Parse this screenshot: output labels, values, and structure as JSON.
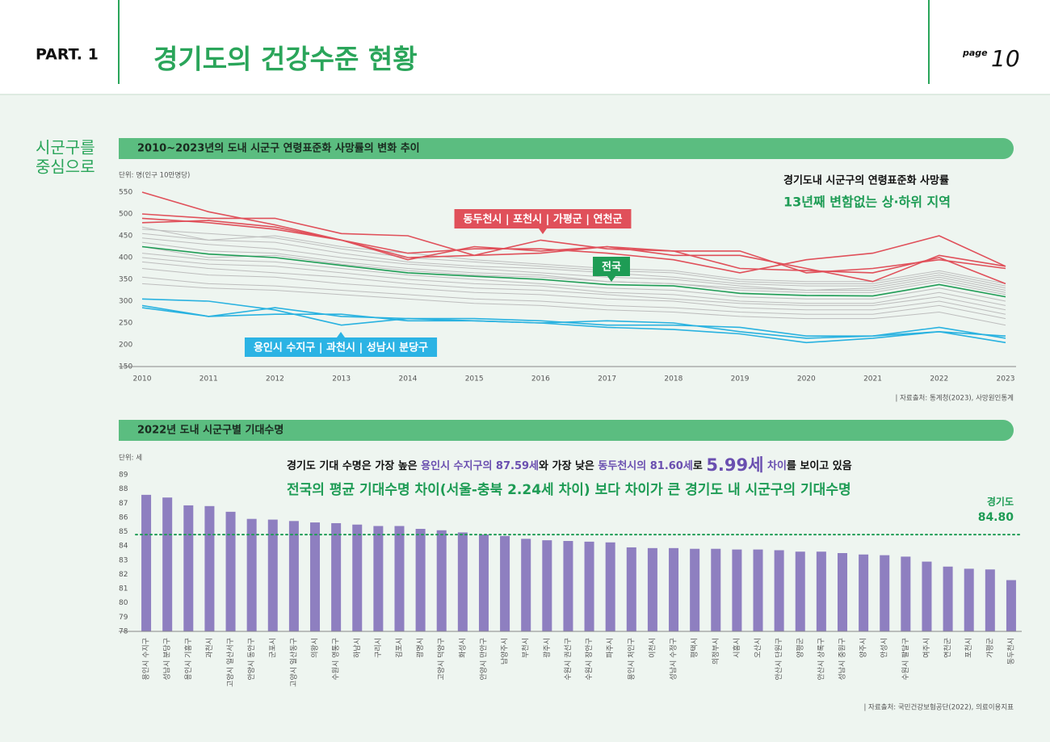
{
  "header": {
    "part": "PART. 1",
    "title": "경기도의 건강수준 현황",
    "page_label": "page",
    "page_number": "10"
  },
  "section_label": [
    "시군구를",
    "중심으로"
  ],
  "chart_data": [
    {
      "type": "line",
      "title": "2010~2023년의 도내 시군구 연령표준화 사망률의 변화 추이",
      "unit": "단위: 명(인구 10만명당)",
      "x": [
        2010,
        2011,
        2012,
        2013,
        2014,
        2015,
        2016,
        2017,
        2018,
        2019,
        2020,
        2021,
        2022,
        2023
      ],
      "xlim": [
        2010,
        2023
      ],
      "xticks": [
        2010,
        2011,
        2012,
        2013,
        2014,
        2015,
        2016,
        2017,
        2018,
        2019,
        2020,
        2021,
        2022,
        2023
      ],
      "ylim": [
        150,
        550
      ],
      "yticks": [
        150,
        200,
        250,
        300,
        350,
        400,
        450,
        500,
        550
      ],
      "series": [
        {
          "color": "#bdbdbd",
          "values": [
            465,
            455,
            445,
            420,
            400,
            390,
            380,
            370,
            365,
            345,
            340,
            340,
            365,
            335
          ]
        },
        {
          "color": "#bdbdbd",
          "values": [
            455,
            440,
            435,
            410,
            390,
            380,
            375,
            365,
            355,
            340,
            335,
            335,
            360,
            330
          ]
        },
        {
          "color": "#bdbdbd",
          "values": [
            445,
            430,
            420,
            400,
            385,
            375,
            365,
            355,
            350,
            335,
            325,
            330,
            355,
            325
          ]
        },
        {
          "color": "#bdbdbd",
          "values": [
            435,
            415,
            410,
            390,
            375,
            365,
            360,
            345,
            340,
            325,
            320,
            320,
            345,
            315
          ]
        },
        {
          "color": "#bdbdbd",
          "values": [
            410,
            395,
            390,
            375,
            360,
            350,
            340,
            330,
            325,
            310,
            305,
            305,
            330,
            300
          ]
        },
        {
          "color": "#bdbdbd",
          "values": [
            400,
            385,
            380,
            365,
            350,
            340,
            335,
            320,
            315,
            300,
            295,
            295,
            320,
            290
          ]
        },
        {
          "color": "#bdbdbd",
          "values": [
            390,
            375,
            365,
            355,
            340,
            330,
            325,
            315,
            305,
            295,
            290,
            290,
            310,
            280
          ]
        },
        {
          "color": "#bdbdbd",
          "values": [
            375,
            360,
            355,
            340,
            330,
            320,
            315,
            305,
            300,
            285,
            280,
            280,
            300,
            270
          ]
        },
        {
          "color": "#bdbdbd",
          "values": [
            355,
            340,
            335,
            325,
            315,
            305,
            300,
            290,
            285,
            275,
            270,
            270,
            290,
            260
          ]
        },
        {
          "color": "#bdbdbd",
          "values": [
            340,
            330,
            325,
            315,
            305,
            295,
            290,
            280,
            275,
            265,
            260,
            260,
            275,
            245
          ]
        },
        {
          "color": "#bdbdbd",
          "values": [
            470,
            440,
            450,
            425,
            410,
            395,
            385,
            375,
            370,
            350,
            345,
            345,
            370,
            340
          ]
        },
        {
          "color": "#bdbdbd",
          "values": [
            425,
            400,
            405,
            385,
            370,
            360,
            355,
            345,
            340,
            330,
            325,
            325,
            350,
            320
          ]
        },
        {
          "color": "#e0505a",
          "values": [
            550,
            505,
            475,
            440,
            395,
            425,
            415,
            425,
            405,
            405,
            375,
            345,
            405,
            380
          ]
        },
        {
          "color": "#e0505a",
          "values": [
            500,
            490,
            490,
            455,
            450,
            405,
            440,
            420,
            415,
            415,
            365,
            375,
            395,
            375
          ]
        },
        {
          "color": "#e0505a",
          "values": [
            490,
            480,
            465,
            440,
            410,
            420,
            420,
            410,
            395,
            365,
            395,
            410,
            450,
            380
          ]
        },
        {
          "color": "#e0505a",
          "values": [
            480,
            485,
            470,
            440,
            400,
            405,
            410,
            425,
            415,
            375,
            370,
            365,
            400,
            340
          ]
        },
        {
          "color": "#29b2e0",
          "values": [
            305,
            300,
            280,
            245,
            260,
            255,
            250,
            255,
            250,
            230,
            215,
            220,
            240,
            215
          ]
        },
        {
          "color": "#29b2e0",
          "values": [
            290,
            265,
            285,
            265,
            260,
            260,
            255,
            245,
            245,
            240,
            220,
            220,
            230,
            220
          ]
        },
        {
          "color": "#29b2e0",
          "values": [
            285,
            265,
            270,
            270,
            255,
            255,
            250,
            240,
            235,
            225,
            205,
            215,
            230,
            205
          ]
        },
        {
          "name": "전국",
          "color": "#1e9c55",
          "values": [
            425,
            408,
            400,
            382,
            365,
            357,
            350,
            338,
            335,
            318,
            313,
            312,
            338,
            310
          ]
        }
      ],
      "callouts": [
        {
          "text": "동두천시 | 포천시 | 가평군 | 연천군",
          "color": "#e0505a"
        },
        {
          "text": "용인시 수지구 | 과천시 | 성남시 분당구",
          "color": "#2bb3e4"
        }
      ],
      "annotation": [
        "경기도내 시군구의 연령표준화 사망률",
        "13년째 변함없는 상·하위 지역"
      ],
      "source": "| 자료출처: 통계청(2023), 사망원인통계"
    },
    {
      "type": "bar",
      "title": "2022년 도내 시군구별 기대수명",
      "unit": "단위: 세",
      "categories": [
        "용인시 수지구",
        "성남시 분당구",
        "용인시 기흥구",
        "과천시",
        "고양시 일산서구",
        "안양시 동안구",
        "군포시",
        "고양시 일산동구",
        "의왕시",
        "수원시 영통구",
        "하남시",
        "구리시",
        "김포시",
        "광명시",
        "고양시 덕양구",
        "화성시",
        "안양시 만안구",
        "남양주시",
        "부천시",
        "광주시",
        "수원시 권선구",
        "수원시 장안구",
        "파주시",
        "용인시 처인구",
        "이천시",
        "성남시 수정구",
        "평택시",
        "의정부시",
        "시흥시",
        "오산시",
        "안산시 단원구",
        "양평군",
        "안산시 상록구",
        "성남시 중원구",
        "양주시",
        "안성시",
        "수원시 팔달구",
        "여주시",
        "연천군",
        "포천시",
        "가평군",
        "동두천시"
      ],
      "values": [
        87.59,
        87.4,
        86.85,
        86.8,
        86.4,
        85.9,
        85.85,
        85.75,
        85.65,
        85.6,
        85.5,
        85.4,
        85.4,
        85.2,
        85.1,
        84.95,
        84.8,
        84.7,
        84.5,
        84.4,
        84.35,
        84.3,
        84.25,
        83.9,
        83.85,
        83.85,
        83.8,
        83.8,
        83.75,
        83.75,
        83.7,
        83.6,
        83.6,
        83.5,
        83.4,
        83.35,
        83.25,
        82.9,
        82.55,
        82.4,
        82.35,
        81.6
      ],
      "color": "#8e7fc0",
      "ylim": [
        78,
        89
      ],
      "yticks": [
        78,
        79,
        80,
        81,
        82,
        83,
        84,
        85,
        86,
        87,
        88,
        89
      ],
      "reference": {
        "label": "경기도",
        "value": 84.8,
        "value_label": "84.80",
        "color": "#1e9c55"
      },
      "annotation": [
        "경기도 기대 수명은 가장 높은 ",
        "용인시 수지구의 87.59세",
        "와 가장 낮은 ",
        "동두천시의 81.60세",
        "로 ",
        "5.99세",
        " 차이",
        "를 보이고 있음"
      ],
      "subtitle": "전국의 평균 기대수명 차이(서울-충북 2.24세 차이) 보다 차이가 큰 경기도 내 시군구의 기대수명",
      "source": "| 자료출처: 국민건강보험공단(2022), 의료이용지표"
    }
  ]
}
